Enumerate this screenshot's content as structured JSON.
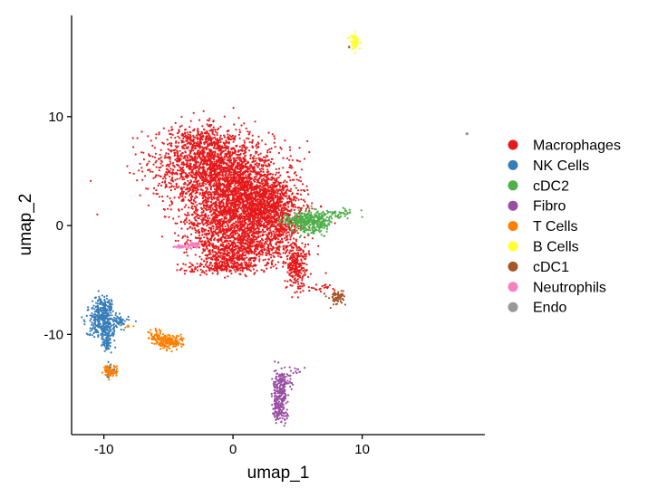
{
  "chart_data": {
    "type": "scatter",
    "title": "",
    "xlabel": "umap_1",
    "ylabel": "umap_2",
    "xlim": [
      -12.5,
      19.5
    ],
    "ylim": [
      -19.2,
      19.3
    ],
    "x_ticks": [
      -10,
      0,
      10
    ],
    "x_tick_labels": [
      "-10",
      "0",
      "10"
    ],
    "y_ticks": [
      -10,
      0,
      10
    ],
    "y_tick_labels": [
      "-10",
      "0",
      "10"
    ],
    "grid": false,
    "legend_position": "right",
    "series": [
      {
        "name": "Macrophages",
        "color": "#e41a1c",
        "clusters": [
          {
            "x": -1.5,
            "y": 5.5,
            "sx": 2.3,
            "sy": 1.6,
            "n": 1700
          },
          {
            "x": 0.8,
            "y": 2.5,
            "sx": 1.9,
            "sy": 1.7,
            "n": 1300
          },
          {
            "x": -0.8,
            "y": 0.3,
            "sx": 1.6,
            "sy": 1.4,
            "n": 700
          },
          {
            "x": 2.8,
            "y": 1.6,
            "sx": 1.3,
            "sy": 1.2,
            "n": 700
          },
          {
            "x": 1.2,
            "y": -2.0,
            "sx": 1.9,
            "sy": 0.9,
            "n": 650
          },
          {
            "x": -0.3,
            "y": -3.3,
            "sx": 1.0,
            "sy": 0.5,
            "n": 200
          },
          {
            "x": 4.9,
            "y": -3.7,
            "sx": 0.4,
            "sy": 1.1,
            "n": 260
          },
          {
            "x": -1.5,
            "y": -4.0,
            "sx": 1.7,
            "sy": 0.25,
            "n": 110
          },
          {
            "x": 3.8,
            "y": -0.3,
            "sx": 0.5,
            "sy": 0.6,
            "n": 90
          },
          {
            "x": -2.8,
            "y": 8.0,
            "sx": 1.0,
            "sy": 0.5,
            "n": 150
          },
          {
            "x": 6.6,
            "y": -5.8,
            "sx": 0.6,
            "sy": 0.18,
            "n": 25
          }
        ]
      },
      {
        "name": "NK Cells",
        "color": "#377eb8",
        "clusters": [
          {
            "x": -10.1,
            "y": -8.7,
            "sx": 0.55,
            "sy": 0.9,
            "n": 320
          },
          {
            "x": -10.0,
            "y": -7.3,
            "sx": 0.35,
            "sy": 0.35,
            "n": 60
          },
          {
            "x": -9.8,
            "y": -10.6,
            "sx": 0.25,
            "sy": 0.6,
            "n": 70
          },
          {
            "x": -8.8,
            "y": -8.8,
            "sx": 0.35,
            "sy": 0.3,
            "n": 40
          },
          {
            "x": -9.6,
            "y": -13.3,
            "sx": 0.25,
            "sy": 0.25,
            "n": 40
          }
        ]
      },
      {
        "name": "cDC2",
        "color": "#4daf4a",
        "clusters": [
          {
            "x": 6.2,
            "y": 0.3,
            "sx": 0.7,
            "sy": 0.5,
            "n": 280
          },
          {
            "x": 4.8,
            "y": 0.6,
            "sx": 0.6,
            "sy": 0.3,
            "n": 90
          },
          {
            "x": 8.1,
            "y": 1.1,
            "sx": 0.7,
            "sy": 0.2,
            "n": 45
          }
        ]
      },
      {
        "name": "Fibro",
        "color": "#984ea3",
        "clusters": [
          {
            "x": 3.6,
            "y": -15.8,
            "sx": 0.3,
            "sy": 1.1,
            "n": 260
          },
          {
            "x": 4.1,
            "y": -14.2,
            "sx": 0.3,
            "sy": 0.4,
            "n": 45
          },
          {
            "x": 5.0,
            "y": -13.3,
            "sx": 0.3,
            "sy": 0.2,
            "n": 10
          }
        ]
      },
      {
        "name": "T Cells",
        "color": "#ff7f00",
        "clusters": [
          {
            "x": -4.9,
            "y": -10.7,
            "sx": 0.55,
            "sy": 0.3,
            "n": 160
          },
          {
            "x": -5.9,
            "y": -10.2,
            "sx": 0.35,
            "sy": 0.3,
            "n": 60
          },
          {
            "x": -9.5,
            "y": -13.3,
            "sx": 0.25,
            "sy": 0.3,
            "n": 70
          },
          {
            "x": -8.2,
            "y": -9.3,
            "sx": 0.2,
            "sy": 0.1,
            "n": 6
          }
        ]
      },
      {
        "name": "B Cells",
        "color": "#ffff33",
        "clusters": [
          {
            "x": 9.4,
            "y": 16.9,
            "sx": 0.18,
            "sy": 0.35,
            "n": 90
          }
        ]
      },
      {
        "name": "cDC1",
        "color": "#a65628",
        "clusters": [
          {
            "x": 8.1,
            "y": -6.6,
            "sx": 0.3,
            "sy": 0.3,
            "n": 70
          },
          {
            "x": 9.0,
            "y": 16.4,
            "sx": 0.05,
            "sy": 0.05,
            "n": 2
          }
        ]
      },
      {
        "name": "Neutrophils",
        "color": "#f781bf",
        "clusters": [
          {
            "x": -3.1,
            "y": -1.8,
            "sx": 0.3,
            "sy": 0.12,
            "n": 50
          },
          {
            "x": -4.0,
            "y": -1.95,
            "sx": 0.35,
            "sy": 0.08,
            "n": 30
          }
        ]
      },
      {
        "name": "Endo",
        "color": "#999999",
        "clusters": [
          {
            "x": 18.1,
            "y": 8.4,
            "sx": 0.05,
            "sy": 0.05,
            "n": 6
          }
        ]
      }
    ]
  }
}
